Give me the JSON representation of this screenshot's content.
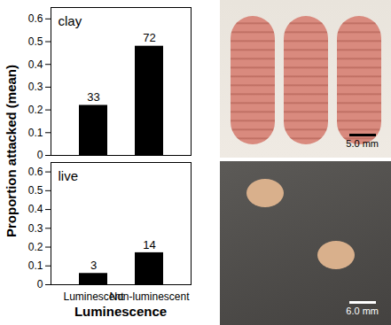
{
  "chart_data": [
    {
      "type": "bar",
      "title": "clay",
      "categories": [
        "Luminescent",
        "Non-luminescent"
      ],
      "values": [
        0.22,
        0.48
      ],
      "counts": [
        33,
        72
      ],
      "color": "#000000",
      "ylim": [
        0,
        0.65
      ],
      "yticks": [
        0,
        0.1,
        0.2,
        0.3,
        0.4,
        0.5,
        0.6
      ],
      "tick_labels": "y"
    },
    {
      "type": "bar",
      "title": "live",
      "categories": [
        "Luminescent",
        "Non-luminescent"
      ],
      "values": [
        0.06,
        0.17
      ],
      "counts": [
        3,
        14
      ],
      "color": "#000000",
      "ylim": [
        0,
        0.65
      ],
      "yticks": [
        0,
        0.1,
        0.2,
        0.3,
        0.4,
        0.5,
        0.6
      ]
    }
  ],
  "ylabel": "Proportion attacked (mean)",
  "xlabel": "Luminescence",
  "photos": [
    {
      "scale_label": "5.0 mm"
    },
    {
      "scale_label": "6.0 mm"
    }
  ]
}
